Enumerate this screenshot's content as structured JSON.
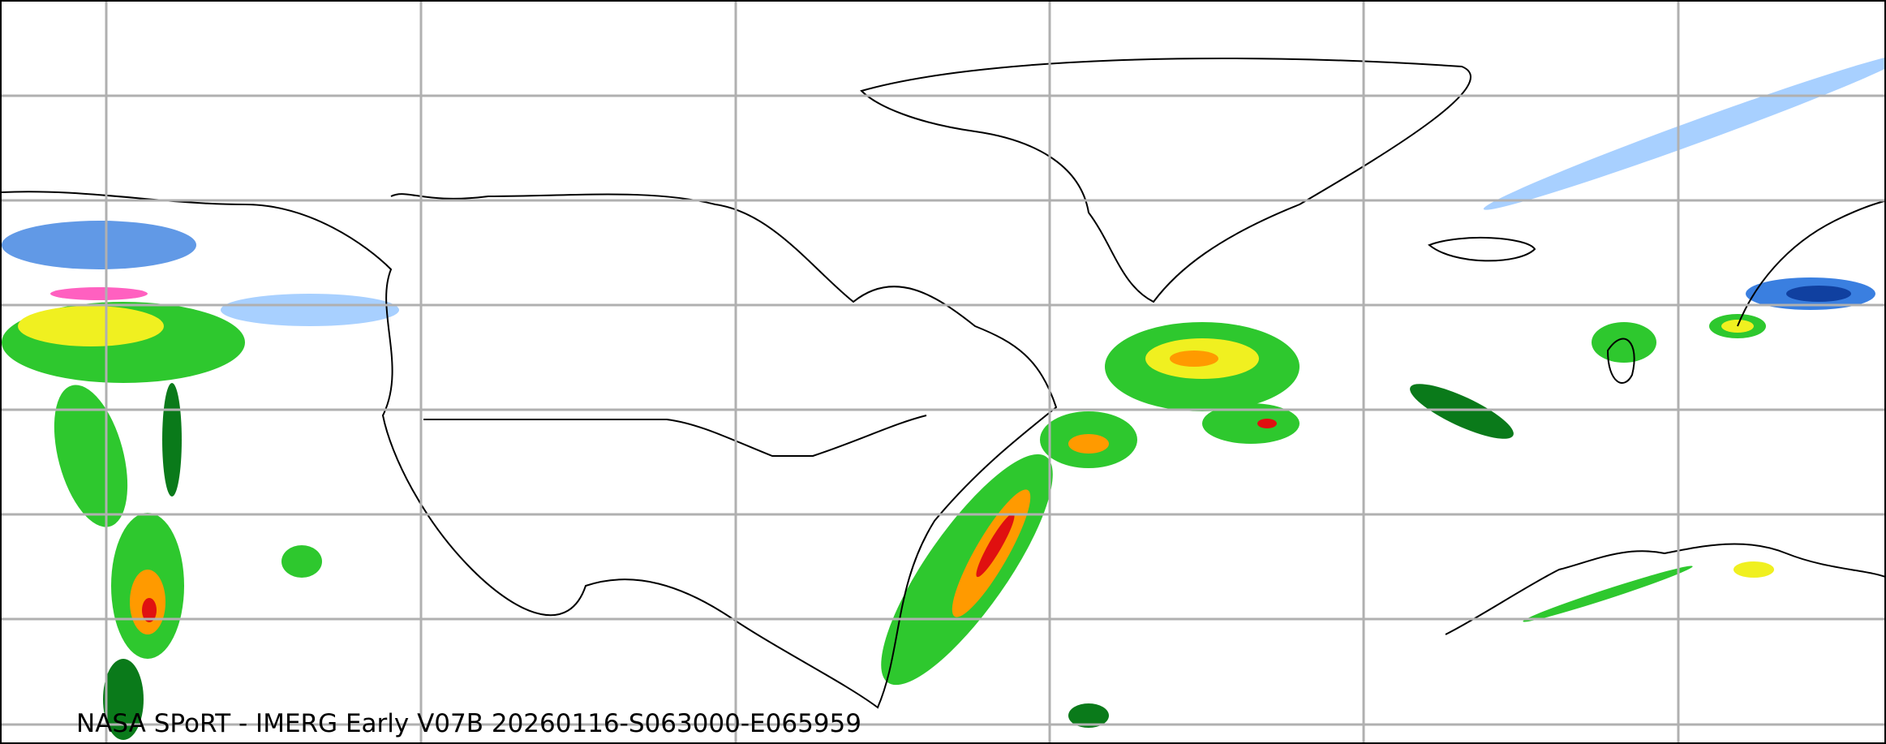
{
  "caption": "NASA SPoRT - IMERG Early V07B 20260116-S063000-E065959",
  "colors": {
    "light_blue": "#a8d0ff",
    "blue": "#3a7fe0",
    "dark_blue": "#1040a0",
    "pink": "#ff60c0",
    "dark_green": "#0a7a1a",
    "green": "#2ec82e",
    "yellow": "#f0f020",
    "orange": "#ff9a00",
    "red": "#e01010",
    "grid": "#b0b0b0",
    "coastline": "#000000"
  },
  "grid": true
}
